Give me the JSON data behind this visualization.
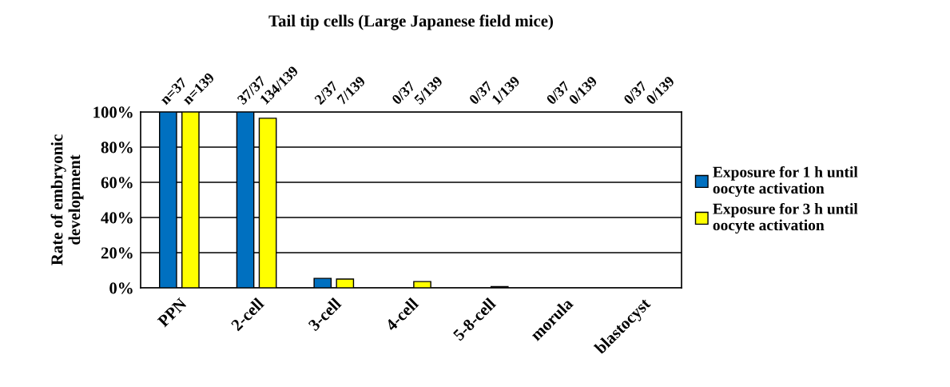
{
  "chart_data": {
    "type": "bar",
    "title": "Tail tip cells (Large Japanese field mice)",
    "ylabel": "Rate of embryonic\ndevelopment",
    "categories": [
      "PPN",
      "2-cell",
      "3-cell",
      "4-cell",
      "5-8-cell",
      "morula",
      "blastocyst"
    ],
    "series": [
      {
        "name": "Exposure for 1 h until\noocyte activation",
        "color": "#0070c0",
        "values": [
          100,
          100,
          5.4,
          0,
          0,
          0,
          0
        ]
      },
      {
        "name": "Exposure for 3 h until\noocyte activation",
        "color": "#ffff00",
        "values": [
          100,
          96.4,
          5.0,
          3.6,
          0.7,
          0,
          0
        ]
      }
    ],
    "annotations": [
      "n=37",
      "n=139",
      "37/37",
      "134/139",
      "2/37",
      "7/139",
      "0/37",
      "5/139",
      "0/37",
      "1/139",
      "0/37",
      "0/139",
      "0/37",
      "0/139"
    ],
    "ylim": [
      0,
      100
    ],
    "yticks": [
      {
        "value": 0,
        "label": "0%"
      },
      {
        "value": 20,
        "label": "20%"
      },
      {
        "value": 40,
        "label": "40%"
      },
      {
        "value": 60,
        "label": "60%"
      },
      {
        "value": 80,
        "label": "80%"
      },
      {
        "value": 100,
        "label": "100%"
      }
    ],
    "grid": "y",
    "legend": "right"
  }
}
